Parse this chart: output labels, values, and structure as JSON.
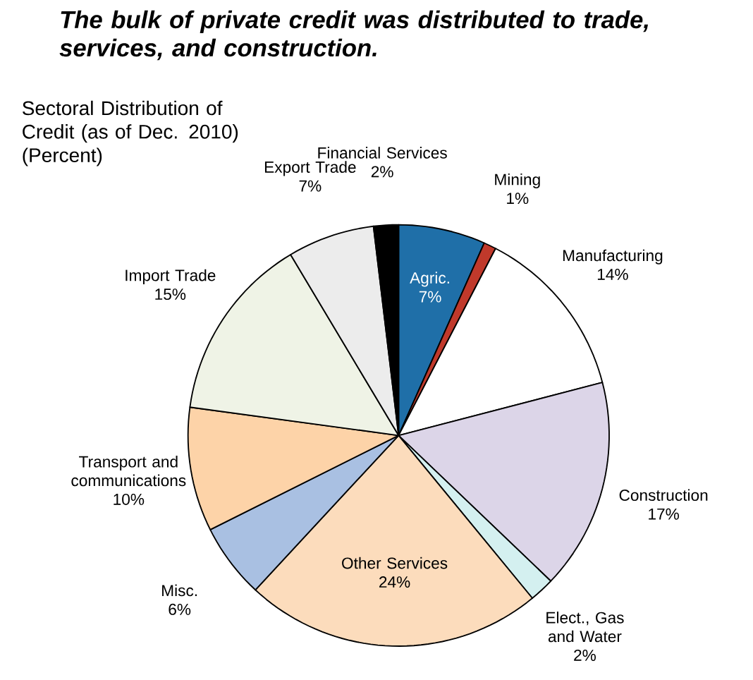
{
  "chart_data": {
    "type": "pie",
    "title": "The bulk of private credit was distributed to trade, services, and construction.",
    "subtitle": "Sectoral Distribution of Credit (as of Dec. 2010) (Percent)",
    "categories": [
      "Agric.",
      "Mining",
      "Manufacturing",
      "Construction",
      "Elect., Gas and Water",
      "Other Services",
      "Misc.",
      "Transport and communications",
      "Import Trade",
      "Export Trade",
      "Financial Services"
    ],
    "values": [
      7,
      1,
      14,
      17,
      2,
      24,
      6,
      10,
      15,
      7,
      2
    ],
    "value_labels": [
      "7%",
      "1%",
      "14%",
      "17%",
      "2%",
      "24%",
      "6%",
      "10%",
      "15%",
      "7%",
      "2%"
    ],
    "colors": [
      "#1f6fa8",
      "#c0392b",
      "#ffffff",
      "#dcd5e8",
      "#d4f0f0",
      "#fcdcbc",
      "#a9c0e2",
      "#fdd3a8",
      "#eff3e6",
      "#ececec",
      "#000000"
    ]
  }
}
